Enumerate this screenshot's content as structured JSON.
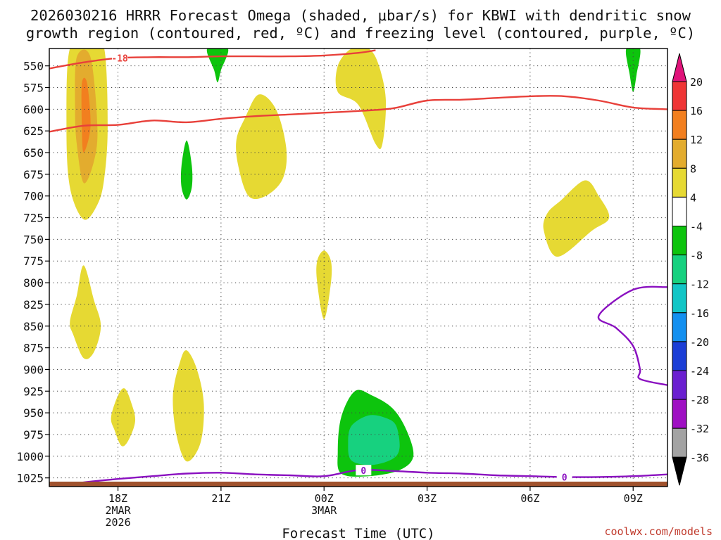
{
  "title_line1": "2026030216 HRRR Forecast Omega (shaded, μbar/s) for KBWI with dendritic snow",
  "title_line2": "growth region (contoured, red, ºC) and freezing level (contoured, purple, ºC)",
  "credit": "coolwx.com/models",
  "chart_data": {
    "type": "heatmap",
    "title": "2026030216 HRRR Forecast Omega (shaded, μbar/s) for KBWI with dendritic snow growth region (contoured, red, ºC) and freezing level (contoured, purple, ºC)",
    "xlabel": "Forecast Time (UTC)",
    "ylabel": "",
    "x_ticks": [
      {
        "hour": 18,
        "lines": [
          "18Z",
          "2MAR",
          "2026"
        ]
      },
      {
        "hour": 21,
        "lines": [
          "21Z"
        ]
      },
      {
        "hour": 24,
        "lines": [
          "00Z",
          "3MAR"
        ]
      },
      {
        "hour": 27,
        "lines": [
          "03Z"
        ]
      },
      {
        "hour": 30,
        "lines": [
          "06Z"
        ]
      },
      {
        "hour": 33,
        "lines": [
          "09Z"
        ]
      }
    ],
    "xlim": [
      16.0,
      34.0
    ],
    "ylim": [
      1035,
      530
    ],
    "y_ticks": [
      550,
      575,
      600,
      625,
      650,
      675,
      700,
      725,
      750,
      775,
      800,
      825,
      850,
      875,
      900,
      925,
      950,
      975,
      1000,
      1025
    ],
    "grid": true,
    "colorbar": {
      "labels": [
        "20",
        "16",
        "12",
        "8",
        "4",
        "-4",
        "-8",
        "-12",
        "-16",
        "-20",
        "-24",
        "-28",
        "-32",
        "-36"
      ],
      "colors": [
        "#ef3535",
        "#f27f1f",
        "#e3ac2e",
        "#e6d933",
        "#ffffff",
        "#0dc40d",
        "#17d17f",
        "#12c6c6",
        "#1390f0",
        "#1b3ed6",
        "#6a1fd0",
        "#9f10c3",
        "#a3a3a3"
      ],
      "top_arrow_color": "#e0137a",
      "bottom_arrow_color": "#000000"
    },
    "contour_labels": {
      "dendritic": "-18",
      "freezing": "0"
    },
    "dendritic_upper": [
      [
        16.0,
        553
      ],
      [
        17.0,
        546
      ],
      [
        18.0,
        541
      ],
      [
        19.0,
        540
      ],
      [
        20.0,
        540
      ],
      [
        21.0,
        539
      ],
      [
        22.0,
        539
      ],
      [
        23.0,
        539
      ],
      [
        24.0,
        538
      ],
      [
        25.0,
        535
      ],
      [
        25.5,
        532
      ]
    ],
    "dendritic_lower": [
      [
        16.0,
        626
      ],
      [
        17.0,
        619
      ],
      [
        18.0,
        618
      ],
      [
        19.0,
        613
      ],
      [
        20.0,
        615
      ],
      [
        21.0,
        611
      ],
      [
        22.0,
        608
      ],
      [
        23.0,
        606
      ],
      [
        24.0,
        604
      ],
      [
        25.0,
        602
      ],
      [
        26.0,
        599
      ],
      [
        27.0,
        590
      ],
      [
        28.0,
        589
      ],
      [
        29.0,
        587
      ],
      [
        30.0,
        585
      ],
      [
        31.0,
        585
      ],
      [
        32.0,
        590
      ],
      [
        33.0,
        598
      ],
      [
        34.0,
        600
      ]
    ],
    "freezing_surface": [
      [
        16.6,
        1032
      ],
      [
        17.5,
        1028
      ],
      [
        19.0,
        1023
      ],
      [
        20.0,
        1020
      ],
      [
        21.0,
        1019
      ],
      [
        22.0,
        1021
      ],
      [
        23.0,
        1022
      ],
      [
        24.0,
        1023
      ],
      [
        25.0,
        1016
      ],
      [
        26.0,
        1017
      ],
      [
        27.0,
        1019
      ],
      [
        28.0,
        1020
      ],
      [
        29.0,
        1022
      ],
      [
        30.0,
        1023
      ],
      [
        31.0,
        1024
      ],
      [
        32.0,
        1024
      ],
      [
        33.0,
        1023
      ],
      [
        34.0,
        1021
      ]
    ],
    "freezing_aloft": [
      [
        34.0,
        805
      ],
      [
        33.0,
        808
      ],
      [
        32.0,
        838
      ],
      [
        32.5,
        852
      ],
      [
        33.0,
        873
      ],
      [
        33.2,
        900
      ],
      [
        33.2,
        911
      ],
      [
        34.0,
        918
      ]
    ],
    "omega_regions": [
      {
        "name": "positive-4-8-col-18z",
        "color": "#e6d933",
        "points": [
          [
            16.6,
            530
          ],
          [
            17.2,
            530
          ],
          [
            17.6,
            530
          ],
          [
            17.7,
            620
          ],
          [
            17.6,
            680
          ],
          [
            17.4,
            710
          ],
          [
            17.0,
            727
          ],
          [
            16.6,
            690
          ],
          [
            16.5,
            620
          ]
        ]
      },
      {
        "name": "positive-8-12-col-18z",
        "color": "#e3ac2e",
        "points": [
          [
            16.8,
            540
          ],
          [
            17.2,
            540
          ],
          [
            17.4,
            620
          ],
          [
            17.3,
            660
          ],
          [
            17.0,
            685
          ],
          [
            16.8,
            640
          ],
          [
            16.75,
            600
          ]
        ]
      },
      {
        "name": "positive-12-16-col-18z",
        "color": "#f27f1f",
        "points": [
          [
            16.95,
            570
          ],
          [
            17.1,
            570
          ],
          [
            17.2,
            620
          ],
          [
            17.0,
            650
          ],
          [
            16.95,
            620
          ]
        ]
      },
      {
        "name": "positive-800-18z",
        "color": "#e6d933",
        "points": [
          [
            17.0,
            780
          ],
          [
            17.3,
            820
          ],
          [
            17.5,
            850
          ],
          [
            17.3,
            880
          ],
          [
            17.0,
            887
          ],
          [
            16.7,
            860
          ],
          [
            16.6,
            845
          ],
          [
            16.8,
            815
          ]
        ]
      },
      {
        "name": "positive-950-18z",
        "color": "#e6d933",
        "points": [
          [
            18.2,
            922
          ],
          [
            18.4,
            940
          ],
          [
            18.5,
            960
          ],
          [
            18.3,
            982
          ],
          [
            18.1,
            988
          ],
          [
            17.9,
            970
          ],
          [
            17.8,
            955
          ],
          [
            18.0,
            930
          ]
        ]
      },
      {
        "name": "positive-950-20z",
        "color": "#e6d933",
        "points": [
          [
            20.0,
            878
          ],
          [
            20.3,
            900
          ],
          [
            20.5,
            940
          ],
          [
            20.4,
            985
          ],
          [
            20.0,
            1006
          ],
          [
            19.7,
            975
          ],
          [
            19.6,
            930
          ],
          [
            19.8,
            892
          ]
        ]
      },
      {
        "name": "positive-650-22z",
        "color": "#e6d933",
        "points": [
          [
            22.1,
            583
          ],
          [
            22.6,
            600
          ],
          [
            22.9,
            645
          ],
          [
            22.8,
            680
          ],
          [
            22.3,
            700
          ],
          [
            21.8,
            700
          ],
          [
            21.5,
            665
          ],
          [
            21.45,
            635
          ],
          [
            21.7,
            610
          ]
        ]
      },
      {
        "name": "positive-775-00z",
        "color": "#e6d933",
        "points": [
          [
            24.0,
            763
          ],
          [
            24.2,
            775
          ],
          [
            24.2,
            800
          ],
          [
            24.0,
            842
          ],
          [
            23.8,
            800
          ],
          [
            23.8,
            775
          ]
        ]
      },
      {
        "name": "positive-575-02z",
        "color": "#e6d933",
        "points": [
          [
            24.8,
            530
          ],
          [
            25.3,
            530
          ],
          [
            25.6,
            550
          ],
          [
            25.8,
            590
          ],
          [
            25.7,
            640
          ],
          [
            25.5,
            640
          ],
          [
            25.0,
            595
          ],
          [
            24.4,
            580
          ],
          [
            24.4,
            550
          ]
        ]
      },
      {
        "name": "positive-725-07z",
        "color": "#e6d933",
        "points": [
          [
            31.6,
            682
          ],
          [
            32.0,
            700
          ],
          [
            32.3,
            725
          ],
          [
            31.8,
            740
          ],
          [
            30.8,
            770
          ],
          [
            30.4,
            740
          ],
          [
            30.5,
            720
          ],
          [
            30.9,
            705
          ]
        ]
      },
      {
        "name": "negative-4-8-975-01z",
        "color": "#0dc40d",
        "points": [
          [
            24.9,
            925
          ],
          [
            25.4,
            930
          ],
          [
            26.0,
            945
          ],
          [
            26.4,
            970
          ],
          [
            26.6,
            1000
          ],
          [
            26.2,
            1016
          ],
          [
            25.3,
            1023
          ],
          [
            24.5,
            1020
          ],
          [
            24.4,
            995
          ],
          [
            24.5,
            955
          ]
        ]
      },
      {
        "name": "negative-8-12-975-01z",
        "color": "#17d17f",
        "points": [
          [
            25.3,
            953
          ],
          [
            25.8,
            956
          ],
          [
            26.1,
            965
          ],
          [
            26.2,
            990
          ],
          [
            26.0,
            1003
          ],
          [
            25.4,
            1010
          ],
          [
            24.8,
            1005
          ],
          [
            24.7,
            985
          ],
          [
            24.8,
            965
          ]
        ]
      },
      {
        "name": "negative-550-21z",
        "color": "#0dc40d",
        "points": [
          [
            20.6,
            530
          ],
          [
            21.2,
            530
          ],
          [
            21.0,
            555
          ],
          [
            20.9,
            569
          ],
          [
            20.8,
            555
          ]
        ]
      },
      {
        "name": "negative-675-20z",
        "color": "#0dc40d",
        "points": [
          [
            20.0,
            636
          ],
          [
            20.15,
            665
          ],
          [
            20.15,
            690
          ],
          [
            20.0,
            704
          ],
          [
            19.85,
            690
          ],
          [
            19.85,
            665
          ]
        ]
      },
      {
        "name": "negative-550-09z",
        "color": "#0dc40d",
        "points": [
          [
            32.8,
            530
          ],
          [
            33.2,
            530
          ],
          [
            33.1,
            560
          ],
          [
            33.0,
            580
          ],
          [
            32.9,
            560
          ]
        ]
      }
    ],
    "surface_color": "#a0522d"
  }
}
